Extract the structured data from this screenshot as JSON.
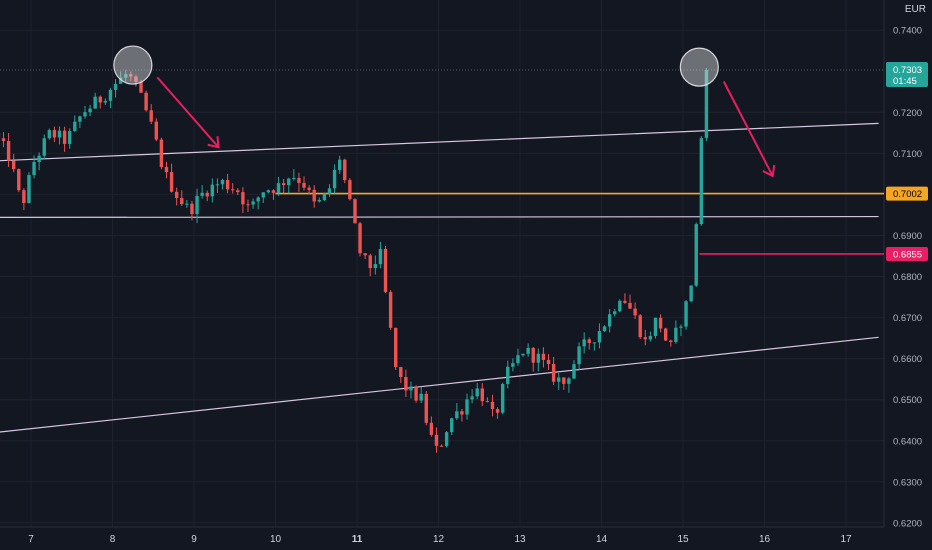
{
  "chart_data": {
    "type": "candlestick",
    "currency": "EUR",
    "y_ticks": [
      "0.7400",
      "0.7200",
      "0.7100",
      "0.7000",
      "0.6900",
      "0.6800",
      "0.6700",
      "0.6600",
      "0.6500",
      "0.6400",
      "0.6300",
      "0.6200"
    ],
    "ylim": [
      0.619,
      0.7436
    ],
    "x_ticks": [
      {
        "label": "7",
        "bold": false
      },
      {
        "label": "8",
        "bold": false
      },
      {
        "label": "9",
        "bold": false
      },
      {
        "label": "10",
        "bold": false
      },
      {
        "label": "11",
        "bold": true
      },
      {
        "label": "12",
        "bold": false
      },
      {
        "label": "13",
        "bold": false
      },
      {
        "label": "14",
        "bold": false
      },
      {
        "label": "15",
        "bold": false
      },
      {
        "label": "16",
        "bold": false
      },
      {
        "label": "17",
        "bold": false
      }
    ],
    "current_price": {
      "price": "0.7303",
      "countdown": "01:45",
      "color": "#26a69a"
    },
    "levels": [
      {
        "price": "0.7002",
        "value": 0.7002,
        "color": "#f5a623",
        "text_color": "#000000",
        "start_day": 10.0
      },
      {
        "price": "0.6855",
        "value": 0.6855,
        "color": "#e91e63",
        "text_color": "#ffffff",
        "start_day": 15.2
      }
    ],
    "colors": {
      "up": "#26a69a",
      "down": "#ef5350",
      "background": "#131722",
      "trendline": "#d8c6e0",
      "arrow": "#e91e63",
      "grid": "#1e222d"
    },
    "trendlines": [
      {
        "from": {
          "day": 6.6,
          "price": 0.7082
        },
        "to": {
          "day": 17.4,
          "price": 0.7173
        }
      },
      {
        "from": {
          "day": 6.6,
          "price": 0.6944
        },
        "to": {
          "day": 17.4,
          "price": 0.6946
        }
      },
      {
        "from": {
          "day": 6.6,
          "price": 0.6421
        },
        "to": {
          "day": 17.4,
          "price": 0.6652
        }
      }
    ],
    "highlight_circles": [
      {
        "day": 8.25,
        "price": 0.7315
      },
      {
        "day": 15.2,
        "price": 0.731
      }
    ],
    "annotation_arrows": [
      {
        "from": {
          "day": 8.55,
          "price": 0.7285
        },
        "to": {
          "day": 9.3,
          "price": 0.7115
        }
      },
      {
        "from": {
          "day": 15.5,
          "price": 0.7275
        },
        "to": {
          "day": 16.1,
          "price": 0.7045
        }
      }
    ],
    "anchors": [
      {
        "day": 6.6,
        "price": 0.715
      },
      {
        "day": 6.8,
        "price": 0.709
      },
      {
        "day": 6.95,
        "price": 0.697
      },
      {
        "day": 7.1,
        "price": 0.708
      },
      {
        "day": 7.3,
        "price": 0.715
      },
      {
        "day": 7.5,
        "price": 0.713
      },
      {
        "day": 7.7,
        "price": 0.72
      },
      {
        "day": 7.9,
        "price": 0.723
      },
      {
        "day": 8.1,
        "price": 0.727
      },
      {
        "day": 8.25,
        "price": 0.7295
      },
      {
        "day": 8.4,
        "price": 0.724
      },
      {
        "day": 8.55,
        "price": 0.716
      },
      {
        "day": 8.7,
        "price": 0.705
      },
      {
        "day": 8.85,
        "price": 0.7
      },
      {
        "day": 9.0,
        "price": 0.696
      },
      {
        "day": 9.2,
        "price": 0.701
      },
      {
        "day": 9.4,
        "price": 0.703
      },
      {
        "day": 9.6,
        "price": 0.701
      },
      {
        "day": 9.75,
        "price": 0.696
      },
      {
        "day": 9.9,
        "price": 0.701
      },
      {
        "day": 10.1,
        "price": 0.702
      },
      {
        "day": 10.25,
        "price": 0.705
      },
      {
        "day": 10.4,
        "price": 0.703
      },
      {
        "day": 10.55,
        "price": 0.697
      },
      {
        "day": 10.7,
        "price": 0.7
      },
      {
        "day": 10.85,
        "price": 0.709
      },
      {
        "day": 11.0,
        "price": 0.695
      },
      {
        "day": 11.1,
        "price": 0.686
      },
      {
        "day": 11.2,
        "price": 0.682
      },
      {
        "day": 11.35,
        "price": 0.685
      },
      {
        "day": 11.45,
        "price": 0.67
      },
      {
        "day": 11.55,
        "price": 0.656
      },
      {
        "day": 11.7,
        "price": 0.652
      },
      {
        "day": 11.85,
        "price": 0.65
      },
      {
        "day": 11.95,
        "price": 0.642
      },
      {
        "day": 12.05,
        "price": 0.637
      },
      {
        "day": 12.2,
        "price": 0.645
      },
      {
        "day": 12.35,
        "price": 0.648
      },
      {
        "day": 12.5,
        "price": 0.653
      },
      {
        "day": 12.6,
        "price": 0.651
      },
      {
        "day": 12.75,
        "price": 0.645
      },
      {
        "day": 12.9,
        "price": 0.656
      },
      {
        "day": 13.1,
        "price": 0.662
      },
      {
        "day": 13.3,
        "price": 0.66
      },
      {
        "day": 13.45,
        "price": 0.656
      },
      {
        "day": 13.6,
        "price": 0.654
      },
      {
        "day": 13.8,
        "price": 0.662
      },
      {
        "day": 14.0,
        "price": 0.666
      },
      {
        "day": 14.15,
        "price": 0.67
      },
      {
        "day": 14.3,
        "price": 0.676
      },
      {
        "day": 14.45,
        "price": 0.671
      },
      {
        "day": 14.6,
        "price": 0.664
      },
      {
        "day": 14.75,
        "price": 0.67
      },
      {
        "day": 14.9,
        "price": 0.662
      },
      {
        "day": 15.05,
        "price": 0.67
      },
      {
        "day": 15.15,
        "price": 0.676
      },
      {
        "day": 15.2,
        "price": 0.686
      },
      {
        "day": 15.24,
        "price": 0.696
      },
      {
        "day": 15.28,
        "price": 0.71
      },
      {
        "day": 15.32,
        "price": 0.7303
      }
    ]
  }
}
